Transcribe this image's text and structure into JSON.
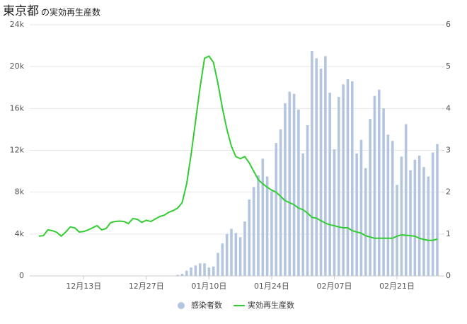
{
  "chart_data": {
    "type": "bar-line",
    "title": "東京都",
    "subtitle": "の実効再生産数",
    "categories": [
      null,
      null,
      null,
      null,
      null,
      null,
      null,
      null,
      null,
      null,
      "12月13日",
      null,
      null,
      null,
      null,
      null,
      null,
      null,
      null,
      null,
      null,
      null,
      null,
      null,
      "12月27日",
      null,
      null,
      null,
      null,
      null,
      null,
      null,
      null,
      null,
      null,
      null,
      null,
      null,
      "01月10日",
      null,
      null,
      null,
      null,
      null,
      null,
      null,
      null,
      null,
      null,
      null,
      null,
      null,
      "01月24日",
      null,
      null,
      null,
      null,
      null,
      null,
      null,
      null,
      null,
      null,
      null,
      null,
      null,
      "02月07日",
      null,
      null,
      null,
      null,
      null,
      null,
      null,
      null,
      null,
      null,
      null,
      null,
      null,
      "02月21日",
      null,
      null,
      null,
      null,
      null,
      null,
      null,
      null,
      null
    ],
    "series": [
      {
        "name": "感染者数",
        "color": "#b4c6df",
        "axis": "y",
        "values": [
          0,
          0,
          0,
          0,
          0,
          0,
          0,
          0,
          0,
          0,
          0,
          0,
          0,
          0,
          0,
          0,
          0,
          0,
          0,
          0,
          0,
          0,
          0,
          0,
          0,
          0,
          0,
          0,
          0,
          0,
          0,
          100,
          200,
          500,
          800,
          1000,
          1200,
          1200,
          800,
          900,
          2200,
          3100,
          4000,
          4500,
          4100,
          3700,
          5200,
          7300,
          8500,
          9600,
          11200,
          9500,
          8100,
          12700,
          14000,
          16500,
          17600,
          17400,
          15900,
          11700,
          14400,
          21500,
          20800,
          19800,
          21000,
          17500,
          12100,
          17100,
          18300,
          18800,
          18600,
          11700,
          13000,
          10300,
          15000,
          17200,
          17800,
          16000,
          13500,
          12900,
          8700,
          11400,
          14500,
          10100,
          11100,
          11500,
          10400,
          9500,
          11800,
          12600
        ]
      },
      {
        "name": "実効再生産数",
        "color": "#33cc33",
        "axis": "y2",
        "values": [
          0.95,
          0.96,
          1.1,
          1.08,
          1.04,
          0.95,
          1.05,
          1.17,
          1.15,
          1.05,
          1.06,
          1.1,
          1.15,
          1.2,
          1.1,
          1.13,
          1.27,
          1.3,
          1.31,
          1.3,
          1.25,
          1.37,
          1.35,
          1.28,
          1.33,
          1.3,
          1.36,
          1.42,
          1.45,
          1.52,
          1.56,
          1.62,
          1.75,
          2.2,
          2.9,
          3.7,
          4.5,
          5.2,
          5.25,
          5.1,
          4.6,
          4.0,
          3.5,
          3.1,
          2.85,
          2.8,
          2.85,
          2.7,
          2.5,
          2.3,
          2.2,
          2.12,
          2.05,
          2.0,
          1.9,
          1.8,
          1.75,
          1.7,
          1.62,
          1.58,
          1.5,
          1.4,
          1.38,
          1.32,
          1.26,
          1.22,
          1.2,
          1.17,
          1.15,
          1.15,
          1.08,
          1.05,
          1.02,
          0.96,
          0.93,
          0.9,
          0.9,
          0.9,
          0.9,
          0.9,
          0.95,
          0.98,
          0.97,
          0.96,
          0.95,
          0.9,
          0.87,
          0.85,
          0.85,
          0.88
        ]
      }
    ],
    "ylim": [
      0,
      24000
    ],
    "yticks": [
      0,
      {
        "value": 4000,
        "label": "4k"
      },
      {
        "value": 8000,
        "label": "8k"
      },
      {
        "value": 12000,
        "label": "12k"
      },
      {
        "value": 16000,
        "label": "16k"
      },
      {
        "value": 20000,
        "label": "20k"
      },
      {
        "value": 24000,
        "label": "24k"
      }
    ],
    "y2lim": [
      0,
      6
    ],
    "y2ticks": [
      0,
      1,
      2,
      3,
      4,
      5,
      6
    ],
    "grid": true,
    "legend": "bottom"
  }
}
